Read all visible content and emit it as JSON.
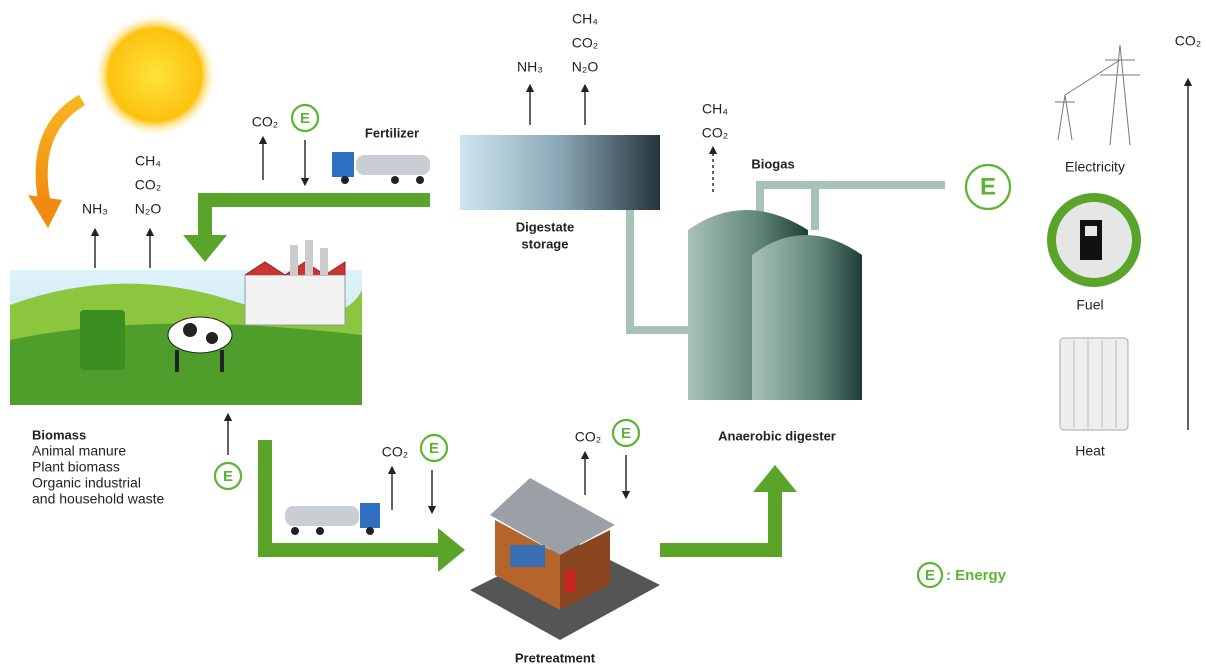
{
  "biomass": {
    "title": "Biomass",
    "items": [
      "Animal manure",
      "Plant biomass",
      "Organic industrial",
      "and household waste"
    ],
    "energy": "E",
    "emissions": {
      "nh3": "NH₃",
      "ch4": "CH₄",
      "co2": "CO₂",
      "n2o": "N₂O"
    }
  },
  "fertilizer": {
    "label": "Fertilizer",
    "co2": "CO₂",
    "energy": "E"
  },
  "digestate_storage": {
    "label": [
      "Digestate",
      "storage"
    ],
    "emissions": {
      "nh3": "NH₃",
      "ch4": "CH₄",
      "co2": "CO₂",
      "n2o": "N₂O"
    }
  },
  "anaerobic_digester": {
    "label": "Anaerobic digester",
    "biogas": {
      "label": "Biogas",
      "ch4": "CH₄",
      "co2": "CO₂"
    },
    "energy": "E"
  },
  "transport": {
    "co2": "CO₂",
    "energy": "E"
  },
  "pretreatment": {
    "label": "Pretreatment",
    "co2": "CO₂",
    "energy": "E"
  },
  "outputs": {
    "items": [
      "Electricity",
      "Fuel",
      "Heat"
    ],
    "co2": "CO₂"
  },
  "legend": {
    "symbol": "E",
    "label": ": Energy"
  }
}
